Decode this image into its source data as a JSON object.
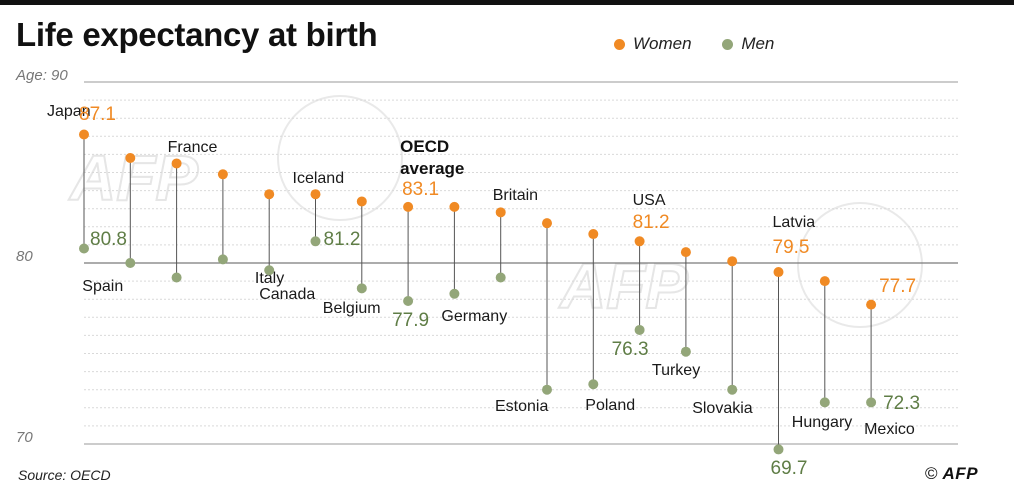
{
  "title": "Life expectancy at birth",
  "source": "Source: OECD",
  "credit": {
    "copyright": "©",
    "brand": "AFP"
  },
  "legend": [
    {
      "label": "Women",
      "color": "#f08a24"
    },
    {
      "label": "Men",
      "color": "#93a679"
    }
  ],
  "chart_data": {
    "type": "dot-range",
    "title": "Life expectancy at birth",
    "ylabel": "Age:",
    "ylim": [
      70,
      90
    ],
    "yticks": [
      {
        "value": 90,
        "label": "Age: 90"
      },
      {
        "value": 80,
        "label": "80"
      },
      {
        "value": 70,
        "label": "70"
      }
    ],
    "grid": true,
    "legend_position": "top-right",
    "colors": {
      "women": "#f08a24",
      "men": "#93a679",
      "women_text": "#f08a24",
      "men_text": "#5f7d46",
      "stem": "#555555"
    },
    "countries": [
      {
        "name": "Japan",
        "women": 87.1,
        "men": 80.8,
        "show_women": "87.1",
        "show_men": "80.8"
      },
      {
        "name": "Spain",
        "women": 85.8,
        "men": 80.0
      },
      {
        "name": "France",
        "women": 85.5,
        "men": 79.2
      },
      {
        "name": "Italy",
        "women": 84.9,
        "men": 80.2
      },
      {
        "name": "Canada",
        "women": 83.8,
        "men": 79.6
      },
      {
        "name": "Iceland",
        "women": 83.8,
        "men": 81.2,
        "show_men": "81.2"
      },
      {
        "name": "Belgium",
        "women": 83.4,
        "men": 78.6
      },
      {
        "name": "OECD average",
        "women": 83.1,
        "men": 77.9,
        "show_women": "83.1",
        "show_men": "77.9",
        "highlight": true
      },
      {
        "name": "Germany",
        "women": 83.1,
        "men": 78.3
      },
      {
        "name": "Britain",
        "women": 82.8,
        "men": 79.2
      },
      {
        "name": "Estonia",
        "women": 82.2,
        "men": 73.0
      },
      {
        "name": "Poland",
        "women": 81.6,
        "men": 73.3
      },
      {
        "name": "USA",
        "women": 81.2,
        "men": 76.3,
        "show_women": "81.2",
        "show_men": "76.3"
      },
      {
        "name": "Turkey",
        "women": 80.6,
        "men": 75.1
      },
      {
        "name": "Slovakia",
        "women": 80.1,
        "men": 73.0
      },
      {
        "name": "Latvia",
        "women": 79.5,
        "men": 69.7,
        "show_women": "79.5",
        "show_men": "69.7"
      },
      {
        "name": "Hungary",
        "women": 79.0,
        "men": 72.3
      },
      {
        "name": "Mexico",
        "women": 77.7,
        "men": 72.3,
        "show_women": "77.7",
        "show_men": "72.3"
      }
    ]
  },
  "watermark": "AFP"
}
